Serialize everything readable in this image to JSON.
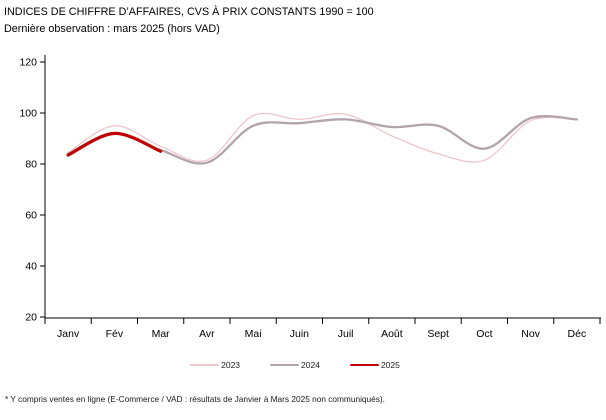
{
  "header": {
    "title": "INDICES DE CHIFFRE D’AFFAIRES, CVS À PRIX CONSTANTS 1990 = 100",
    "subtitle": "Dernière observation : mars 2025 (hors VAD)"
  },
  "chart_data": {
    "type": "line",
    "title": "INDICES DE CHIFFRE D’AFFAIRES, CVS À PRIX CONSTANTS 1990 = 100",
    "subtitle": "Dernière observation : mars 2025 (hors VAD)",
    "categories": [
      "Janv",
      "Fév",
      "Mar",
      "Avr",
      "Mai",
      "Juin",
      "Juil",
      "Août",
      "Sept",
      "Oct",
      "Nov",
      "Déc"
    ],
    "series": [
      {
        "name": "2023",
        "color": "#F0C6CA",
        "width": 1.3,
        "values": [
          84.5,
          95,
          87,
          81.5,
          99,
          97.5,
          99.5,
          91,
          84,
          81.5,
          97,
          97.5
        ]
      },
      {
        "name": "2024",
        "color": "#B3A3AD",
        "width": 2.3,
        "values": [
          84,
          92,
          85.5,
          80.5,
          95,
          96,
          97.5,
          94.5,
          95,
          86,
          98,
          97.5
        ]
      },
      {
        "name": "2025",
        "color": "#C00000",
        "width": 3.2,
        "values": [
          83.5,
          92,
          85,
          null,
          null,
          null,
          null,
          null,
          null,
          null,
          null,
          null
        ]
      }
    ],
    "ylim": [
      20,
      120
    ],
    "yticks": [
      20,
      40,
      60,
      80,
      100,
      120
    ],
    "grid": false,
    "legend_position": "bottom",
    "axis_color": "#000000"
  },
  "footnote": "* Y compris ventes en ligne (E-Commerce / VAD : résultats de Janvier à Mars 2025 non communiqués)."
}
